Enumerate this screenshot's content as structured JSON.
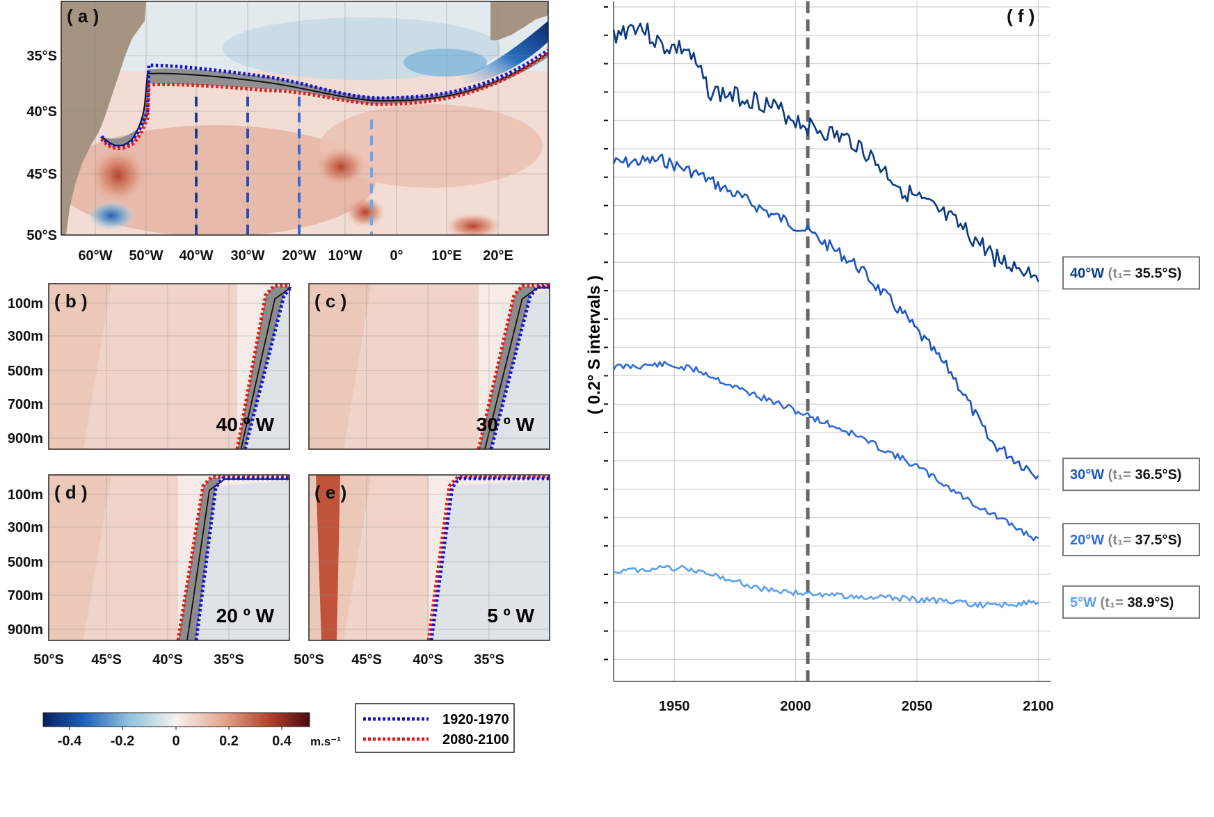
{
  "colors": {
    "land": "#a59482",
    "blue_dot": "#1414d2",
    "red_dot": "#e01b1b",
    "s40": "#0a3a82",
    "s30": "#1c55c0",
    "s20": "#2f6ad8",
    "s5": "#5aa0ee",
    "ref_line": "#666666",
    "neg_shade": "#dde3e6",
    "pos_shade": "#efd0c6"
  },
  "panel_a": {
    "label": "( a )",
    "type": "map",
    "x_ticks": [
      "60°W",
      "50°W",
      "40°W",
      "30°W",
      "20°W",
      "10°W",
      "0°",
      "10°E",
      "20°E"
    ],
    "y_ticks": [
      "35°S",
      "40°S",
      "45°S",
      "50°S"
    ],
    "sections": [
      "40°W",
      "30°W",
      "20°W",
      "5°W"
    ]
  },
  "sections": {
    "y_ticks": [
      "100m",
      "300m",
      "500m",
      "700m",
      "900m"
    ],
    "x_ticks": [
      "50°S",
      "45°S",
      "40°S",
      "35°S"
    ],
    "panels": [
      {
        "label": "( b )",
        "title": "40 º W"
      },
      {
        "label": "( c )",
        "title": "30 º W"
      },
      {
        "label": "( d )",
        "title": "20 º W"
      },
      {
        "label": "( e )",
        "title": "5 º W"
      }
    ]
  },
  "colorbar": {
    "ticks": [
      "-0.4",
      "-0.2",
      "0",
      "0.2",
      "0.4"
    ],
    "unit": "m.s⁻¹",
    "range": [
      -0.5,
      0.5
    ]
  },
  "legend": {
    "items": [
      {
        "label": "1920-1970",
        "color": "#1414d2"
      },
      {
        "label": "2080-2100",
        "color": "#e01b1b"
      }
    ]
  },
  "chart_data": {
    "type": "line",
    "panel": "( f )",
    "ylabel": "( 0.2° S  intervals )",
    "xlim": [
      1925,
      2105
    ],
    "x_ticks": [
      "1950",
      "2000",
      "2050",
      "2100"
    ],
    "vline_year": 2005,
    "series": [
      {
        "name": "40°W",
        "lat": "35.5°S",
        "color": "#0a3a82",
        "anchors": [
          [
            1925,
            1.0
          ],
          [
            1935,
            0.6
          ],
          [
            1945,
            1.4
          ],
          [
            1955,
            1.5
          ],
          [
            1965,
            3.0
          ],
          [
            1985,
            3.3
          ],
          [
            2005,
            4.2
          ],
          [
            2025,
            4.8
          ],
          [
            2045,
            6.5
          ],
          [
            2065,
            7.6
          ],
          [
            2085,
            9.0
          ],
          [
            2100,
            9.4
          ]
        ],
        "noise": 0.35,
        "seed": 3
      },
      {
        "name": "30°W",
        "lat": "36.5°S",
        "color": "#1c55c0",
        "anchors": [
          [
            1925,
            5.5
          ],
          [
            1945,
            5.4
          ],
          [
            1960,
            5.9
          ],
          [
            1975,
            6.6
          ],
          [
            1990,
            7.3
          ],
          [
            2005,
            7.9
          ],
          [
            2025,
            9.1
          ],
          [
            2045,
            10.9
          ],
          [
            2065,
            13.0
          ],
          [
            2080,
            15.3
          ],
          [
            2093,
            16.1
          ],
          [
            2100,
            16.5
          ]
        ],
        "noise": 0.22,
        "seed": 7
      },
      {
        "name": "20°W",
        "lat": "37.5°S",
        "color": "#2f6ad8",
        "anchors": [
          [
            1925,
            12.7
          ],
          [
            1945,
            12.6
          ],
          [
            1960,
            12.8
          ],
          [
            1975,
            13.4
          ],
          [
            1990,
            13.9
          ],
          [
            2005,
            14.4
          ],
          [
            2025,
            15.1
          ],
          [
            2050,
            16.2
          ],
          [
            2075,
            17.6
          ],
          [
            2100,
            18.8
          ]
        ],
        "noise": 0.12,
        "seed": 11
      },
      {
        "name": "5°W",
        "lat": "38.9°S",
        "color": "#5aa0ee",
        "anchors": [
          [
            1925,
            19.9
          ],
          [
            1940,
            19.8
          ],
          [
            1955,
            19.8
          ],
          [
            1970,
            20.1
          ],
          [
            1985,
            20.5
          ],
          [
            2005,
            20.7
          ],
          [
            2030,
            20.8
          ],
          [
            2055,
            20.9
          ],
          [
            2080,
            21.1
          ],
          [
            2100,
            21.0
          ]
        ],
        "noise": 0.1,
        "seed": 19
      }
    ]
  }
}
